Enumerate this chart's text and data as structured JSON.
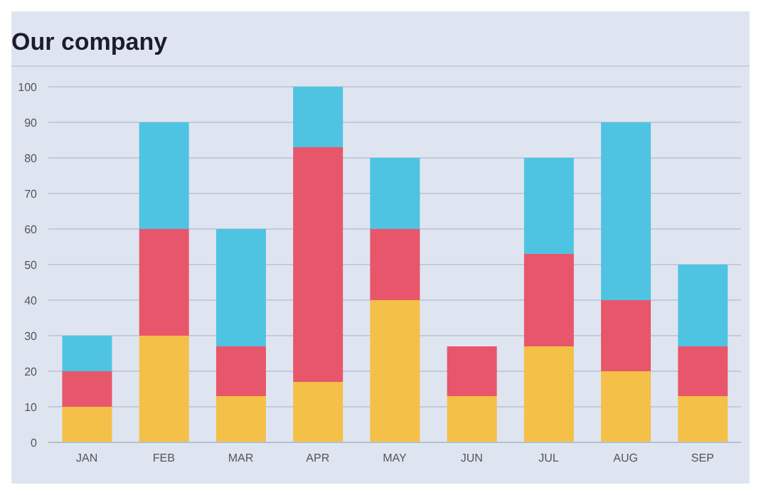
{
  "chart_data": {
    "type": "bar",
    "title": "Our company",
    "stacked": true,
    "categories": [
      "JAN",
      "FEB",
      "MAR",
      "APR",
      "MAY",
      "JUN",
      "JUL",
      "AUG",
      "SEP"
    ],
    "series": [
      {
        "color": "#f4c048",
        "values": [
          10,
          30,
          13,
          17,
          40,
          13,
          27,
          20,
          13
        ]
      },
      {
        "color": "#e8566b",
        "values": [
          10,
          30,
          14,
          66,
          20,
          14,
          26,
          20,
          14
        ]
      },
      {
        "color": "#4ec4e2",
        "values": [
          10,
          30,
          33,
          17,
          20,
          null,
          27,
          50,
          23
        ]
      }
    ],
    "ylim": [
      0,
      100
    ],
    "yticks": [
      0,
      10,
      20,
      30,
      40,
      50,
      60,
      70,
      80,
      90,
      100
    ],
    "grid": "y",
    "legend": false
  }
}
